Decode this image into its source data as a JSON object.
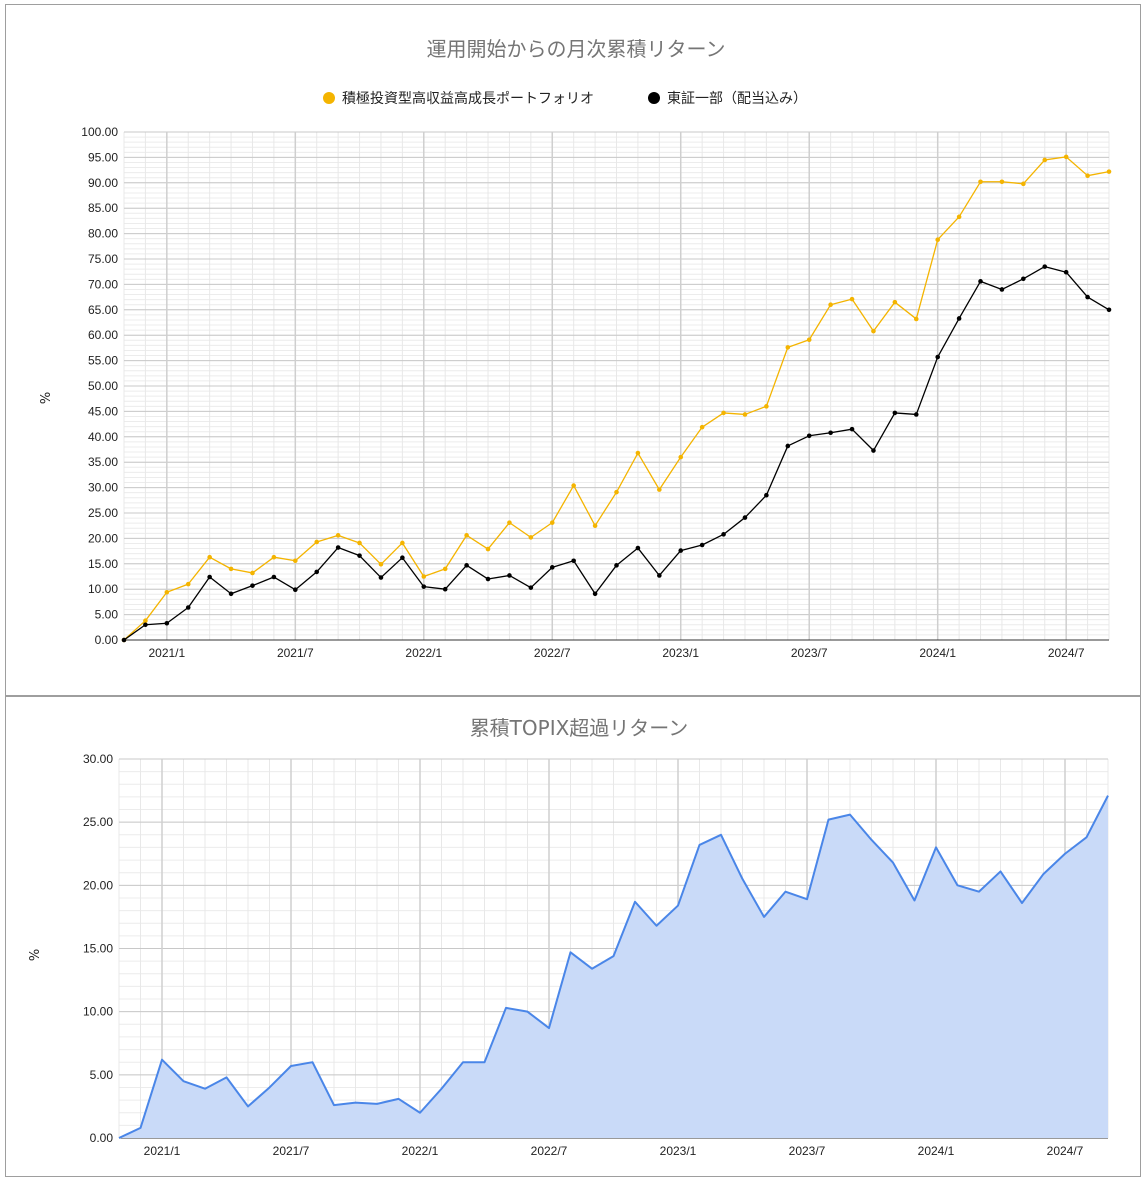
{
  "chart_data": [
    {
      "type": "line",
      "title": "運用開始からの月次累積リターン",
      "ylabel": "%",
      "xlabel": "",
      "ylim": [
        0,
        100
      ],
      "y_ticks": [
        "0.00",
        "5.00",
        "10.00",
        "15.00",
        "20.00",
        "25.00",
        "30.00",
        "35.00",
        "40.00",
        "45.00",
        "50.00",
        "55.00",
        "60.00",
        "65.00",
        "70.00",
        "75.00",
        "80.00",
        "85.00",
        "90.00",
        "95.00",
        "100.00"
      ],
      "x_tick_labels": [
        "2021/1",
        "2021/7",
        "2022/1",
        "2022/7",
        "2023/1",
        "2023/7",
        "2024/1",
        "2024/7"
      ],
      "x": [
        "2020/11",
        "2020/12",
        "2021/1",
        "2021/2",
        "2021/3",
        "2021/4",
        "2021/5",
        "2021/6",
        "2021/7",
        "2021/8",
        "2021/9",
        "2021/10",
        "2021/11",
        "2021/12",
        "2022/1",
        "2022/2",
        "2022/3",
        "2022/4",
        "2022/5",
        "2022/6",
        "2022/7",
        "2022/8",
        "2022/9",
        "2022/10",
        "2022/11",
        "2022/12",
        "2023/1",
        "2023/2",
        "2023/3",
        "2023/4",
        "2023/5",
        "2023/6",
        "2023/7",
        "2023/8",
        "2023/9",
        "2023/10",
        "2023/11",
        "2023/12",
        "2024/1",
        "2024/2",
        "2024/3",
        "2024/4",
        "2024/5",
        "2024/6",
        "2024/7",
        "2024/8",
        "2024/9"
      ],
      "legend_position": "top",
      "grid": true,
      "series": [
        {
          "name": "積極投資型高収益高成長ポートフォリオ",
          "color": "#f4b400",
          "values": [
            0.0,
            3.8,
            9.4,
            11.0,
            16.3,
            14.0,
            13.2,
            16.3,
            15.6,
            19.3,
            20.6,
            19.1,
            14.9,
            19.1,
            12.5,
            14.0,
            20.6,
            17.9,
            23.1,
            20.2,
            23.1,
            30.4,
            22.5,
            29.1,
            36.8,
            29.6,
            36.0,
            41.9,
            44.7,
            44.4,
            46.0,
            57.6,
            59.1,
            66.0,
            67.1,
            60.8,
            66.5,
            63.2,
            78.8,
            83.3,
            90.2,
            90.2,
            89.8,
            94.5,
            95.1,
            91.4,
            92.2
          ]
        },
        {
          "name": "東証一部（配当込み）",
          "color": "#000000",
          "values": [
            0.0,
            3.0,
            3.3,
            6.4,
            12.4,
            9.1,
            10.7,
            12.4,
            9.9,
            13.4,
            18.2,
            16.6,
            12.3,
            16.2,
            10.5,
            10.0,
            14.7,
            12.0,
            12.7,
            10.3,
            14.3,
            15.6,
            9.1,
            14.7,
            18.1,
            12.7,
            17.6,
            18.7,
            20.8,
            24.1,
            28.5,
            38.2,
            40.2,
            40.8,
            41.5,
            37.3,
            44.7,
            44.4,
            55.7,
            63.3,
            70.6,
            69.0,
            71.1,
            73.5,
            72.4,
            67.5,
            65.0
          ]
        }
      ]
    },
    {
      "type": "area",
      "title": "累積TOPIX超過リターン",
      "ylabel": "%",
      "xlabel": "",
      "ylim": [
        0,
        30
      ],
      "y_ticks": [
        "0.00",
        "5.00",
        "10.00",
        "15.00",
        "20.00",
        "25.00",
        "30.00"
      ],
      "x_tick_labels": [
        "2021/1",
        "2021/7",
        "2022/1",
        "2022/7",
        "2023/1",
        "2023/7",
        "2024/1",
        "2024/7"
      ],
      "grid": true,
      "series": [
        {
          "color": "#4a86e8",
          "fill": "#c9daf8",
          "values": [
            0.0,
            0.8,
            6.2,
            4.5,
            3.9,
            4.8,
            2.5,
            4.0,
            5.7,
            6.0,
            2.6,
            2.8,
            2.7,
            3.1,
            2.0,
            3.9,
            6.0,
            6.0,
            10.3,
            10.0,
            8.7,
            14.7,
            13.4,
            14.4,
            18.7,
            16.8,
            18.4,
            23.2,
            24.0,
            20.5,
            17.5,
            19.5,
            18.9,
            25.2,
            25.6,
            23.6,
            21.8,
            18.8,
            23.0,
            20.0,
            19.5,
            21.1,
            18.6,
            20.9,
            22.5,
            23.8,
            27.1
          ]
        }
      ]
    }
  ]
}
